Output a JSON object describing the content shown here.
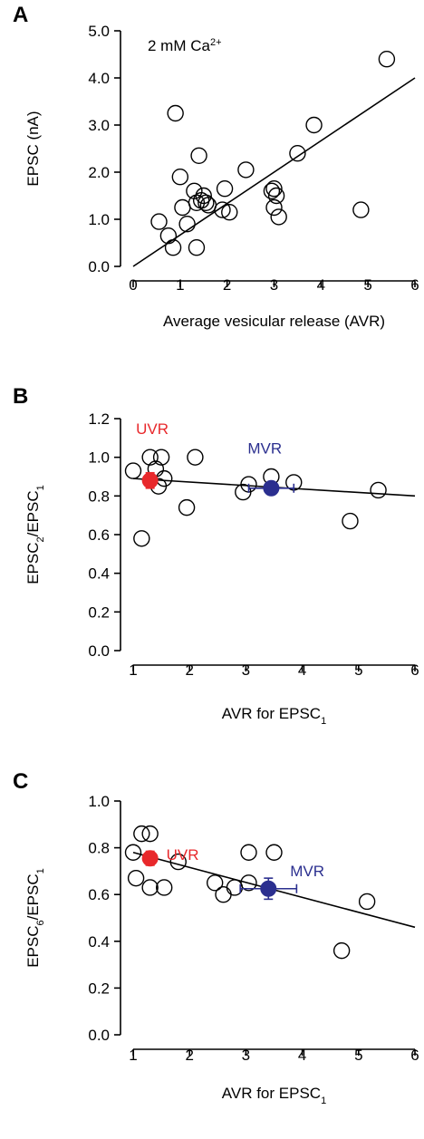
{
  "colors": {
    "uvr": "#e8282b",
    "mvr": "#2b2f8f",
    "ink": "#000000"
  },
  "chart_data": [
    {
      "panel": "A",
      "type": "scatter",
      "annotation": "2 mM Ca",
      "annotation_sup": "2+",
      "xlabel": "Average vesicular release (AVR)",
      "ylabel": "EPSC (nA)",
      "xlim": [
        0,
        6
      ],
      "ylim": [
        0,
        5
      ],
      "xticks": [
        "0",
        "1",
        "2",
        "3",
        "4",
        "5",
        "6"
      ],
      "yticks": [
        "0.0",
        "1.0",
        "2.0",
        "3.0",
        "4.0",
        "5.0"
      ],
      "x": [
        0.55,
        0.75,
        0.85,
        0.9,
        1.0,
        1.05,
        1.15,
        1.3,
        1.35,
        1.35,
        1.4,
        1.45,
        1.5,
        1.55,
        1.6,
        1.9,
        1.95,
        2.05,
        2.4,
        2.95,
        3.0,
        3.0,
        3.05,
        3.1,
        3.5,
        3.85,
        4.85,
        5.4
      ],
      "y": [
        0.95,
        0.65,
        0.4,
        3.25,
        1.9,
        1.25,
        0.9,
        1.6,
        1.35,
        0.4,
        2.35,
        1.4,
        1.5,
        1.35,
        1.3,
        1.2,
        1.65,
        1.15,
        2.05,
        1.6,
        1.65,
        1.25,
        1.5,
        1.05,
        2.4,
        3.0,
        1.2,
        4.4
      ],
      "fit": {
        "x": [
          0,
          6
        ],
        "y": [
          0,
          4.0
        ]
      }
    },
    {
      "panel": "B",
      "type": "scatter",
      "xlabel": "AVR for EPSC",
      "xlabel_sub": "1",
      "ylabel_parts": [
        "EPSC",
        "2",
        "/EPSC",
        "1"
      ],
      "xlim": [
        1,
        6
      ],
      "ylim": [
        0,
        1.2
      ],
      "xticks": [
        "1",
        "2",
        "3",
        "4",
        "5",
        "6"
      ],
      "yticks": [
        "0.0",
        "0.2",
        "0.4",
        "0.6",
        "0.8",
        "1.0",
        "1.2"
      ],
      "x": [
        1.0,
        1.15,
        1.3,
        1.4,
        1.45,
        1.5,
        1.55,
        1.95,
        2.1,
        2.95,
        3.05,
        3.45,
        3.85,
        4.85,
        5.35
      ],
      "y": [
        0.93,
        0.58,
        1.0,
        0.94,
        0.85,
        1.0,
        0.89,
        0.74,
        1.0,
        0.82,
        0.86,
        0.9,
        0.87,
        0.67,
        0.83
      ],
      "fit": {
        "x": [
          1,
          6
        ],
        "y": [
          0.89,
          0.8
        ]
      },
      "groups": [
        {
          "name": "UVR",
          "x": 1.3,
          "y": 0.88,
          "yerr": 0.04,
          "xerr": 0.0
        },
        {
          "name": "MVR",
          "x": 3.45,
          "y": 0.84,
          "yerr": 0.02,
          "xerr": 0.4
        }
      ]
    },
    {
      "panel": "C",
      "type": "scatter",
      "xlabel": "AVR for EPSC",
      "xlabel_sub": "1",
      "ylabel_parts": [
        "EPSC",
        "6",
        "/EPSC",
        "1"
      ],
      "xlim": [
        1,
        6
      ],
      "ylim": [
        0,
        1.0
      ],
      "xticks": [
        "1",
        "2",
        "3",
        "4",
        "5",
        "6"
      ],
      "yticks": [
        "0.0",
        "0.2",
        "0.4",
        "0.6",
        "0.8",
        "1.0"
      ],
      "x": [
        1.0,
        1.05,
        1.15,
        1.3,
        1.3,
        1.55,
        1.8,
        2.45,
        2.6,
        2.8,
        3.05,
        3.05,
        3.5,
        4.7,
        5.15
      ],
      "y": [
        0.78,
        0.67,
        0.86,
        0.86,
        0.63,
        0.63,
        0.74,
        0.65,
        0.6,
        0.63,
        0.78,
        0.65,
        0.78,
        0.36,
        0.57
      ],
      "fit": {
        "x": [
          1,
          6
        ],
        "y": [
          0.78,
          0.46
        ]
      },
      "groups": [
        {
          "name": "UVR",
          "x": 1.3,
          "y": 0.755,
          "yerr": 0.03,
          "xerr": 0.0
        },
        {
          "name": "MVR",
          "x": 3.4,
          "y": 0.625,
          "yerr": 0.045,
          "xerr": 0.5
        }
      ]
    }
  ]
}
